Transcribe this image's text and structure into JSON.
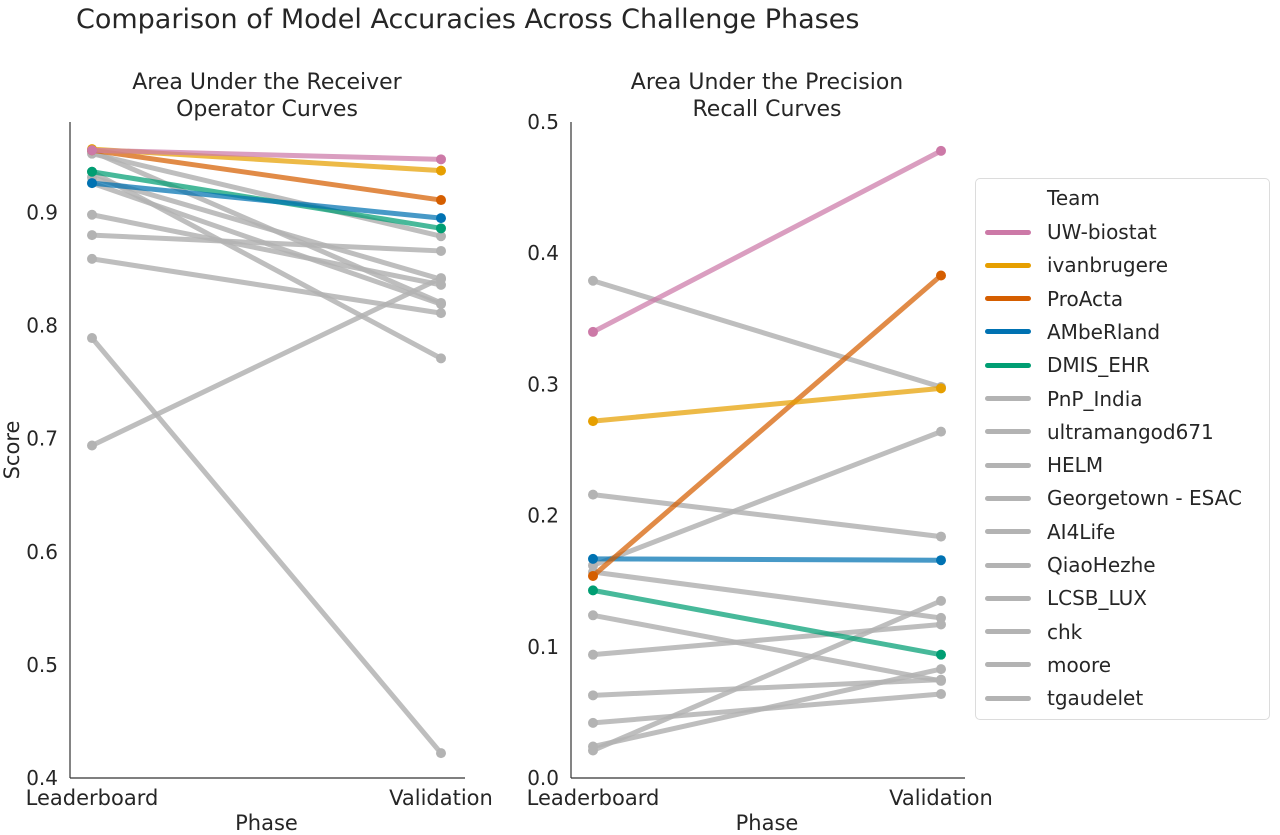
{
  "suptitle": "Comparison of Model Accuracies Across Challenge Phases",
  "legend": {
    "title": "Team",
    "items": [
      {
        "label": "UW-biostat",
        "color": "#cc79a7"
      },
      {
        "label": "ivanbrugere",
        "color": "#e69f00"
      },
      {
        "label": "ProActa",
        "color": "#d55e00"
      },
      {
        "label": "AMbeRland",
        "color": "#0072b2"
      },
      {
        "label": "DMIS_EHR",
        "color": "#009e73"
      },
      {
        "label": "PnP_India",
        "color": "#b3b3b3"
      },
      {
        "label": "ultramangod671",
        "color": "#b3b3b3"
      },
      {
        "label": "HELM",
        "color": "#b3b3b3"
      },
      {
        "label": "Georgetown - ESAC",
        "color": "#b3b3b3"
      },
      {
        "label": "AI4Life",
        "color": "#b3b3b3"
      },
      {
        "label": "QiaoHezhe",
        "color": "#b3b3b3"
      },
      {
        "label": "LCSB_LUX",
        "color": "#b3b3b3"
      },
      {
        "label": "chk",
        "color": "#b3b3b3"
      },
      {
        "label": "moore",
        "color": "#b3b3b3"
      },
      {
        "label": "tgaudelet",
        "color": "#b3b3b3"
      }
    ]
  },
  "chart_data": [
    {
      "type": "line",
      "title": "Area Under the Receiver\nOperator Curves",
      "xlabel": "Phase",
      "ylabel": "Score",
      "categories": [
        "Leaderboard",
        "Validation"
      ],
      "ylim": [
        0.4,
        0.98
      ],
      "yticks": [
        0.4,
        0.5,
        0.6,
        0.7,
        0.8,
        0.9
      ],
      "series": [
        {
          "name": "tgaudelet",
          "color": "#b3b3b3",
          "values": [
            0.789,
            0.422
          ]
        },
        {
          "name": "moore",
          "color": "#b3b3b3",
          "values": [
            0.694,
            0.842
          ]
        },
        {
          "name": "chk",
          "color": "#b3b3b3",
          "values": [
            0.859,
            0.811
          ]
        },
        {
          "name": "LCSB_LUX",
          "color": "#b3b3b3",
          "values": [
            0.88,
            0.866
          ]
        },
        {
          "name": "QiaoHezhe",
          "color": "#b3b3b3",
          "values": [
            0.898,
            0.836
          ]
        },
        {
          "name": "AI4Life",
          "color": "#b3b3b3",
          "values": [
            0.926,
            0.819
          ]
        },
        {
          "name": "Georgetown - ESAC",
          "color": "#b3b3b3",
          "values": [
            0.931,
            0.841
          ]
        },
        {
          "name": "HELM",
          "color": "#b3b3b3",
          "values": [
            0.936,
            0.771
          ]
        },
        {
          "name": "ultramangod671",
          "color": "#b3b3b3",
          "values": [
            0.952,
            0.879
          ]
        },
        {
          "name": "PnP_India",
          "color": "#b3b3b3",
          "values": [
            0.954,
            0.82
          ]
        },
        {
          "name": "DMIS_EHR",
          "color": "#009e73",
          "values": [
            0.936,
            0.886
          ]
        },
        {
          "name": "AMbeRland",
          "color": "#0072b2",
          "values": [
            0.926,
            0.895
          ]
        },
        {
          "name": "ProActa",
          "color": "#d55e00",
          "values": [
            0.955,
            0.911
          ]
        },
        {
          "name": "ivanbrugere",
          "color": "#e69f00",
          "values": [
            0.956,
            0.937
          ]
        },
        {
          "name": "UW-biostat",
          "color": "#cc79a7",
          "values": [
            0.955,
            0.947
          ]
        }
      ]
    },
    {
      "type": "line",
      "title": "Area Under the Precision\nRecall Curves",
      "xlabel": "Phase",
      "ylabel": "",
      "categories": [
        "Leaderboard",
        "Validation"
      ],
      "ylim": [
        0.0,
        0.5
      ],
      "yticks": [
        0.0,
        0.1,
        0.2,
        0.3,
        0.4,
        0.5
      ],
      "series": [
        {
          "name": "tgaudelet",
          "color": "#b3b3b3",
          "values": [
            0.021,
            0.135
          ]
        },
        {
          "name": "moore",
          "color": "#b3b3b3",
          "values": [
            0.024,
            0.083
          ]
        },
        {
          "name": "chk",
          "color": "#b3b3b3",
          "values": [
            0.042,
            0.064
          ]
        },
        {
          "name": "LCSB_LUX",
          "color": "#b3b3b3",
          "values": [
            0.063,
            0.075
          ]
        },
        {
          "name": "QiaoHezhe",
          "color": "#b3b3b3",
          "values": [
            0.094,
            0.117
          ]
        },
        {
          "name": "AI4Life",
          "color": "#b3b3b3",
          "values": [
            0.124,
            0.074
          ]
        },
        {
          "name": "Georgetown - ESAC",
          "color": "#b3b3b3",
          "values": [
            0.157,
            0.122
          ]
        },
        {
          "name": "HELM",
          "color": "#b3b3b3",
          "values": [
            0.162,
            0.264
          ]
        },
        {
          "name": "ultramangod671",
          "color": "#b3b3b3",
          "values": [
            0.216,
            0.184
          ]
        },
        {
          "name": "PnP_India",
          "color": "#b3b3b3",
          "values": [
            0.379,
            0.298
          ]
        },
        {
          "name": "DMIS_EHR",
          "color": "#009e73",
          "values": [
            0.143,
            0.094
          ]
        },
        {
          "name": "AMbeRland",
          "color": "#0072b2",
          "values": [
            0.167,
            0.166
          ]
        },
        {
          "name": "ProActa",
          "color": "#d55e00",
          "values": [
            0.154,
            0.383
          ]
        },
        {
          "name": "ivanbrugere",
          "color": "#e69f00",
          "values": [
            0.272,
            0.297
          ]
        },
        {
          "name": "UW-biostat",
          "color": "#cc79a7",
          "values": [
            0.34,
            0.478
          ]
        }
      ]
    }
  ]
}
